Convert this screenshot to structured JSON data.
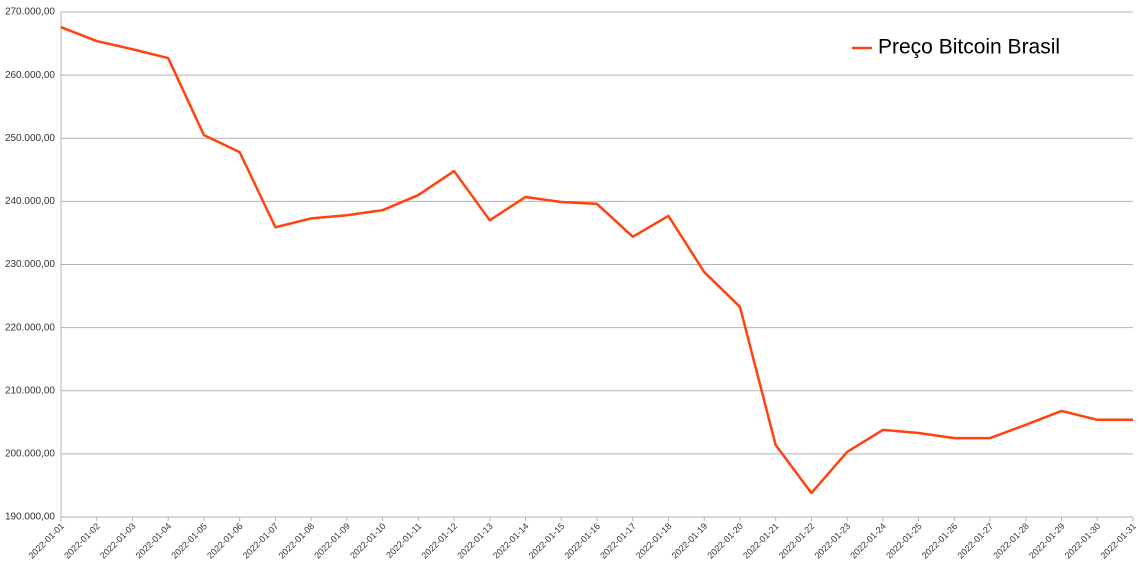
{
  "chart_data": {
    "type": "line",
    "x": [
      "2022-01-01",
      "2022-01-02",
      "2022-01-03",
      "2022-01-04",
      "2022-01-05",
      "2022-01-06",
      "2022-01-07",
      "2022-01-08",
      "2022-01-09",
      "2022-01-10",
      "2022-01-11",
      "2022-01-12",
      "2022-01-13",
      "2022-01-14",
      "2022-01-15",
      "2022-01-16",
      "2022-01-17",
      "2022-01-18",
      "2022-01-19",
      "2022-01-20",
      "2022-01-21",
      "2022-01-22",
      "2022-01-23",
      "2022-01-24",
      "2022-01-25",
      "2022-01-26",
      "2022-01-27",
      "2022-01-28",
      "2022-01-29",
      "2022-01-30",
      "2022-01-31"
    ],
    "series": [
      {
        "name": "Preço Bitcoin Brasil",
        "color": "#ff420e",
        "values": [
          267600,
          265400,
          264100,
          262700,
          250500,
          247800,
          235900,
          237300,
          237800,
          238600,
          241000,
          244800,
          237000,
          240700,
          239900,
          239600,
          234400,
          237700,
          228800,
          223300,
          201400,
          193800,
          200300,
          203800,
          203300,
          202500,
          202500,
          204600,
          206800,
          205400,
          205400
        ]
      }
    ],
    "ylim": [
      190000,
      270000
    ],
    "yticks": [
      {
        "value": 190000,
        "label": "190.000,00"
      },
      {
        "value": 200000,
        "label": "200.000,00"
      },
      {
        "value": 210000,
        "label": "210.000,00"
      },
      {
        "value": 220000,
        "label": "220.000,00"
      },
      {
        "value": 230000,
        "label": "230.000,00"
      },
      {
        "value": 240000,
        "label": "240.000,00"
      },
      {
        "value": 250000,
        "label": "250.000,00"
      },
      {
        "value": 260000,
        "label": "260.000,00"
      },
      {
        "value": 270000,
        "label": "270.000,00"
      }
    ],
    "grid": true,
    "legend": "top-right"
  }
}
